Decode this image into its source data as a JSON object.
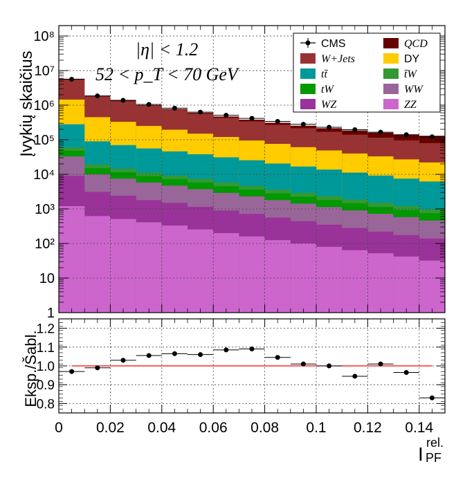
{
  "chart_data": [
    {
      "type": "stacked-histogram",
      "ylabel": "Įvykių skaičius",
      "yscale": "log",
      "ylim": [
        1,
        200000000
      ],
      "xlim": [
        0,
        0.15
      ],
      "x_bin_edges": [
        0,
        0.01,
        0.02,
        0.03,
        0.04,
        0.05,
        0.06,
        0.07,
        0.08,
        0.09,
        0.1,
        0.11,
        0.12,
        0.13,
        0.14,
        0.15
      ],
      "y_ticks": [
        "1",
        "10",
        "10²",
        "10³",
        "10⁴",
        "10⁵",
        "10⁶",
        "10⁷",
        "10⁸"
      ],
      "grid": true,
      "legend_position": "top-right",
      "annotation_line1": "|η| < 1.2",
      "annotation_line2": "52 < p_T < 70 GeV",
      "stack_order_bottom_to_top": [
        "ZZ",
        "WZ",
        "WW",
        "tW",
        "t̄W",
        "tt̄",
        "DY",
        "W+Jets",
        "QCD"
      ],
      "stack_tops": [
        {
          "name": "ZZ",
          "values": [
            1200,
            620,
            510,
            410,
            330,
            255,
            200,
            160,
            125,
            100,
            80,
            64,
            52,
            42,
            32
          ]
        },
        {
          "name": "WZ",
          "values": [
            9000,
            3100,
            2400,
            1800,
            1500,
            1150,
            900,
            720,
            560,
            440,
            350,
            280,
            220,
            175,
            140
          ]
        },
        {
          "name": "WW",
          "values": [
            33000,
            10000,
            7500,
            5800,
            4700,
            3700,
            2900,
            2300,
            1800,
            1420,
            1130,
            900,
            720,
            580,
            460
          ]
        },
        {
          "name": "tW",
          "values": [
            48000,
            15000,
            11500,
            8900,
            7200,
            5800,
            4500,
            3600,
            2800,
            2250,
            1800,
            1450,
            1150,
            930,
            750
          ]
        },
        {
          "name": "t̄W",
          "values": [
            60000,
            19000,
            14500,
            11200,
            9100,
            7400,
            5800,
            4600,
            3600,
            2900,
            2330,
            1870,
            1500,
            1200,
            970
          ]
        },
        {
          "name": "tt̄",
          "values": [
            280000,
            90000,
            70000,
            56000,
            46000,
            38000,
            31000,
            25500,
            20500,
            16800,
            13700,
            11200,
            9200,
            7500,
            6200
          ]
        },
        {
          "name": "DY",
          "values": [
            1450000,
            450000,
            330000,
            250000,
            195000,
            150000,
            120000,
            95000,
            76000,
            61000,
            49000,
            40000,
            33000,
            27000,
            22000
          ]
        },
        {
          "name": "W+Jets",
          "values": [
            5700000,
            1800000,
            1300000,
            960000,
            730000,
            560000,
            430000,
            340000,
            270000,
            215000,
            170000,
            140000,
            115000,
            95000,
            80000
          ]
        },
        {
          "name": "QCD",
          "values": [
            5800000,
            1850000,
            1350000,
            1000000,
            770000,
            600000,
            470000,
            380000,
            310000,
            255000,
            215000,
            185000,
            160000,
            140000,
            130000
          ]
        }
      ],
      "data_points": {
        "name": "CMS",
        "values": [
          5600000,
          1850000,
          1380000,
          1050000,
          820000,
          630000,
          510000,
          415000,
          340000,
          280000,
          230000,
          195000,
          165000,
          140000,
          122000
        ]
      },
      "legend": [
        {
          "label": "CMS",
          "marker": "point",
          "color": "#000000"
        },
        {
          "label": "QCD",
          "color": "#660000",
          "math": true
        },
        {
          "label": "W+Jets",
          "color": "#993333",
          "math": true
        },
        {
          "label": "DY",
          "color": "#ffcc00"
        },
        {
          "label": "tt̄",
          "color": "#009999",
          "math": true
        },
        {
          "label": "t̄W",
          "color": "#339933",
          "math": true
        },
        {
          "label": "tW",
          "color": "#009900",
          "math": true
        },
        {
          "label": "WW",
          "color": "#996699",
          "math": true
        },
        {
          "label": "WZ",
          "color": "#993399",
          "math": true
        },
        {
          "label": "ZZ",
          "color": "#cc66cc",
          "math": true
        }
      ]
    },
    {
      "type": "scatter",
      "ylabel": "Eksp./Šabl.",
      "xlabel": "I",
      "xlabel_sup": "rel.",
      "xlabel_sub": "PF",
      "xlim": [
        0,
        0.15
      ],
      "ylim": [
        0.75,
        1.25
      ],
      "x_ticks": [
        "0",
        "0.02",
        "0.04",
        "0.06",
        "0.08",
        "0.1",
        "0.12",
        "0.14"
      ],
      "y_ticks": [
        "0.8",
        "0.9",
        "1.0",
        "1.1",
        "1.2"
      ],
      "reference_line": 1.0,
      "reference_line_color": "#ff0000",
      "grid": true,
      "x": [
        0.005,
        0.015,
        0.025,
        0.035,
        0.045,
        0.055,
        0.065,
        0.075,
        0.085,
        0.095,
        0.105,
        0.115,
        0.125,
        0.135,
        0.145
      ],
      "y": [
        0.97,
        0.99,
        1.03,
        1.055,
        1.065,
        1.06,
        1.085,
        1.09,
        1.045,
        1.01,
        1.0,
        0.945,
        1.01,
        0.965,
        0.83
      ]
    }
  ]
}
